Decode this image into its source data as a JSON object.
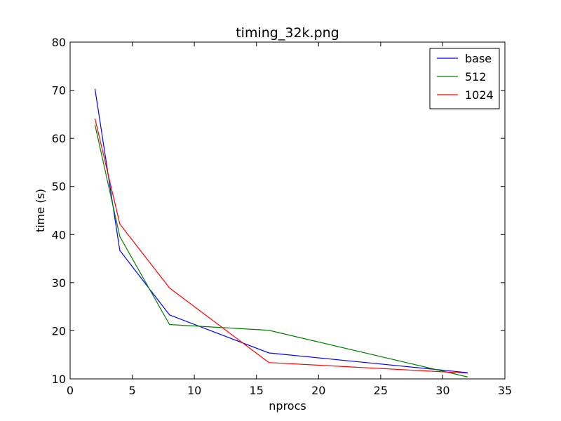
{
  "chart_data": {
    "type": "line",
    "title": "timing_32k.png",
    "xlabel": "nprocs",
    "ylabel": "time (s)",
    "xlim": [
      0,
      35
    ],
    "ylim": [
      10,
      80
    ],
    "x_ticks": [
      0,
      5,
      10,
      15,
      20,
      25,
      30,
      35
    ],
    "y_ticks": [
      10,
      20,
      30,
      40,
      50,
      60,
      70,
      80
    ],
    "grid": false,
    "legend_position": "top-right",
    "x": [
      2,
      4,
      8,
      16,
      32
    ],
    "series": [
      {
        "name": "base",
        "color": "#0000ff",
        "values": [
          70.3,
          36.7,
          23.3,
          15.4,
          11.3
        ]
      },
      {
        "name": "512",
        "color": "#008000",
        "values": [
          62.8,
          39.6,
          21.3,
          20.1,
          10.4
        ]
      },
      {
        "name": "1024",
        "color": "#ff0000",
        "values": [
          64.1,
          42.2,
          28.9,
          13.4,
          11.2
        ]
      }
    ]
  }
}
